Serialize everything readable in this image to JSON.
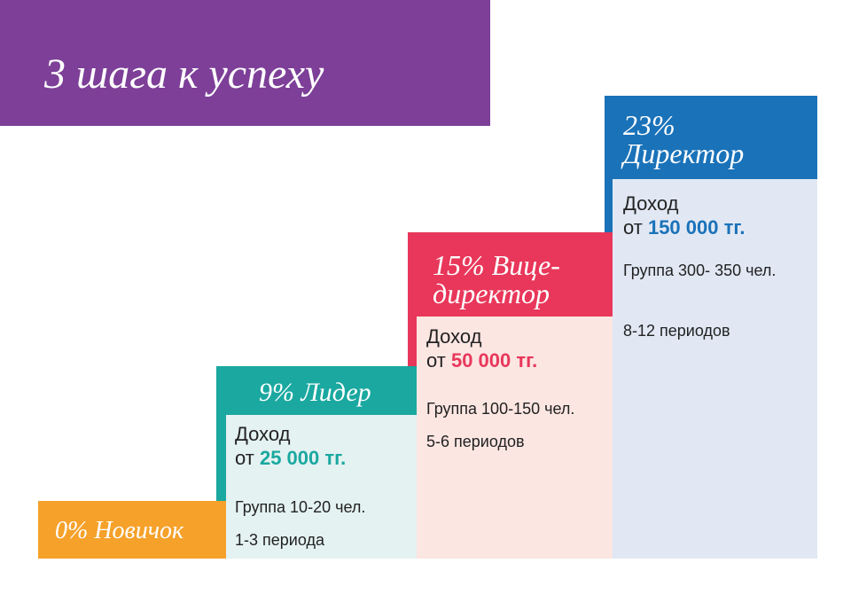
{
  "title": "3 шага к успеху",
  "steps": [
    {
      "header": [
        "0% Новичок"
      ]
    },
    {
      "header": [
        "9% Лидер"
      ],
      "income_label": "Доход",
      "income_prefix": "от",
      "income": "25 000 тг.",
      "group": "Группа 10-20 чел.",
      "periods": "1-3 периода"
    },
    {
      "header": [
        "15% Вице-",
        "директор"
      ],
      "income_label": "Доход",
      "income_prefix": "от",
      "income": "50 000 тг.",
      "group": "Группа 100-150 чел.",
      "periods": "5-6 периодов"
    },
    {
      "header": [
        "23%",
        "Директор"
      ],
      "income_label": "Доход",
      "income_prefix": "от",
      "income": "150 000 тг.",
      "group": "Группа 300- 350 чел.",
      "periods": "8-12 периодов"
    }
  ]
}
